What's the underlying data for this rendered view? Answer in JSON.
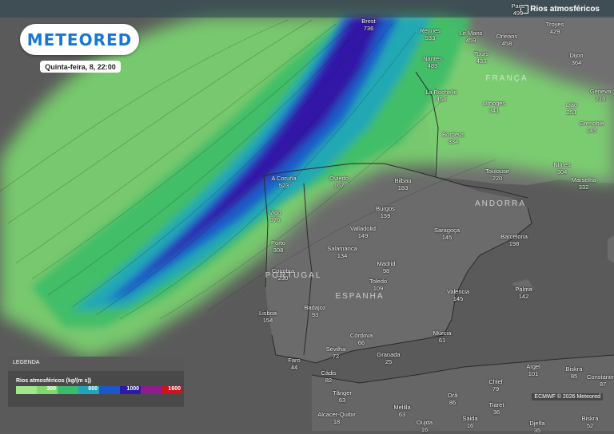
{
  "header": {
    "layer_title": "Rios atmosféricos"
  },
  "brand": {
    "logo": "METEORED",
    "logo_color": "#1877d3"
  },
  "timestamp": "Quinta-feira, 8, 22:00",
  "legend": {
    "title": "LEGENDA",
    "label": "Rios atmosféricos (kg/(m s))",
    "stops": [
      {
        "color": "#9fe889",
        "label": ""
      },
      {
        "color": "#7fd96b",
        "label": "300"
      },
      {
        "color": "#3cbb6a",
        "label": ""
      },
      {
        "color": "#1fa5b8",
        "label": "600"
      },
      {
        "color": "#1c56c8",
        "label": ""
      },
      {
        "color": "#2b1aa8",
        "label": "1000"
      },
      {
        "color": "#8e1c8a",
        "label": ""
      },
      {
        "color": "#c8161c",
        "label": "1600"
      }
    ]
  },
  "credit": "ECMWF © 2026 Meteored",
  "countries": [
    "FRANÇA",
    "ANDORRA",
    "PORTUGAL",
    "ESPANHA"
  ],
  "cities": [
    {
      "name": "Paris",
      "value": "499"
    },
    {
      "name": "Brest",
      "value": "736"
    },
    {
      "name": "Rennes",
      "value": "533"
    },
    {
      "name": "Le Mans",
      "value": "459"
    },
    {
      "name": "Orleans",
      "value": "458"
    },
    {
      "name": "Troyes",
      "value": "429"
    },
    {
      "name": "Nantes",
      "value": "489"
    },
    {
      "name": "Tours",
      "value": "433"
    },
    {
      "name": "Dijon",
      "value": "364"
    },
    {
      "name": "La Rochelle",
      "value": "454"
    },
    {
      "name": "Limoges",
      "value": "341"
    },
    {
      "name": "Geneva",
      "value": "216"
    },
    {
      "name": "Lião",
      "value": "251"
    },
    {
      "name": "Grenoble",
      "value": "145"
    },
    {
      "name": "Bordeus",
      "value": "334"
    },
    {
      "name": "Nimes",
      "value": "304"
    },
    {
      "name": "Marselha",
      "value": "332"
    },
    {
      "name": "Toulouse",
      "value": "220"
    },
    {
      "name": "A Coruña",
      "value": "523"
    },
    {
      "name": "Oviedo",
      "value": "167"
    },
    {
      "name": "Bilbau",
      "value": "183"
    },
    {
      "name": "Vigo",
      "value": "376"
    },
    {
      "name": "Burgos",
      "value": "159"
    },
    {
      "name": "Valladolid",
      "value": "149"
    },
    {
      "name": "Saragoça",
      "value": "145"
    },
    {
      "name": "Barcelona",
      "value": "198"
    },
    {
      "name": "Porto",
      "value": "308"
    },
    {
      "name": "Salamanca",
      "value": "134"
    },
    {
      "name": "Madrid",
      "value": "98"
    },
    {
      "name": "Coimbra",
      "value": "230"
    },
    {
      "name": "Toledo",
      "value": "109"
    },
    {
      "name": "Valencia",
      "value": "145"
    },
    {
      "name": "Palma",
      "value": "142"
    },
    {
      "name": "Lisboa",
      "value": "154"
    },
    {
      "name": "Badajoz",
      "value": "93"
    },
    {
      "name": "Córdova",
      "value": "66"
    },
    {
      "name": "Múrcia",
      "value": "61"
    },
    {
      "name": "Sevilha",
      "value": "72"
    },
    {
      "name": "Granada",
      "value": "25"
    },
    {
      "name": "Faro",
      "value": "44"
    },
    {
      "name": "Cádis",
      "value": "82"
    },
    {
      "name": "Argel",
      "value": "101"
    },
    {
      "name": "Biskra",
      "value": "85"
    },
    {
      "name": "Constantina",
      "value": "87"
    },
    {
      "name": "Chlef",
      "value": "79"
    },
    {
      "name": "Orã",
      "value": "86"
    },
    {
      "name": "Tânger",
      "value": "63"
    },
    {
      "name": "Tiaret",
      "value": "36"
    },
    {
      "name": "Melilla",
      "value": "63"
    },
    {
      "name": "Alcacer-Quibir",
      "value": "18"
    },
    {
      "name": "Oujda",
      "value": "16"
    },
    {
      "name": "Saida",
      "value": "16"
    },
    {
      "name": "Djelfa",
      "value": "35"
    },
    {
      "name": "Biskra",
      "value": "52"
    }
  ]
}
